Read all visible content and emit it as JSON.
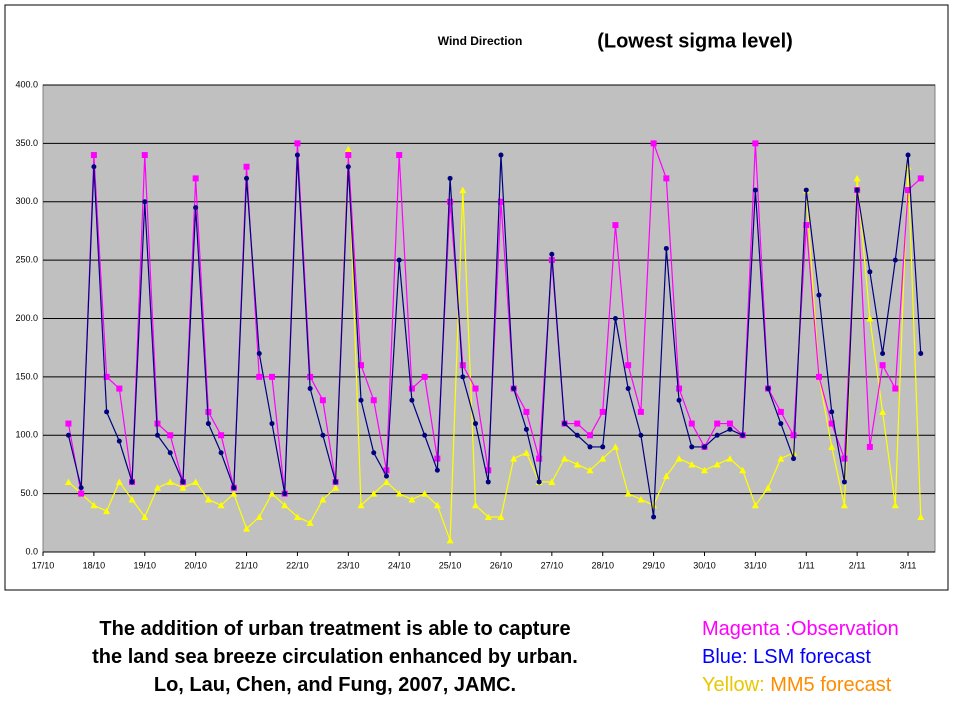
{
  "chart_data": {
    "type": "line",
    "title": "Wind Direction",
    "subtitle": "(Lowest sigma level)",
    "xlim": [
      0,
      17.53
    ],
    "xticks": [
      {
        "value": 0,
        "label": "17/10"
      },
      {
        "value": 1,
        "label": "18/10"
      },
      {
        "value": 2,
        "label": "19/10"
      },
      {
        "value": 3,
        "label": "20/10"
      },
      {
        "value": 4,
        "label": "21/10"
      },
      {
        "value": 5,
        "label": "22/10"
      },
      {
        "value": 6,
        "label": "23/10"
      },
      {
        "value": 7,
        "label": "24/10"
      },
      {
        "value": 8,
        "label": "25/10"
      },
      {
        "value": 9,
        "label": "26/10"
      },
      {
        "value": 10,
        "label": "27/10"
      },
      {
        "value": 11,
        "label": "28/10"
      },
      {
        "value": 12,
        "label": "29/10"
      },
      {
        "value": 13,
        "label": "30/10"
      },
      {
        "value": 14,
        "label": "31/10"
      },
      {
        "value": 15,
        "label": "1/11"
      },
      {
        "value": 16,
        "label": "2/11"
      },
      {
        "value": 17,
        "label": "3/11"
      }
    ],
    "ylim": [
      0,
      400
    ],
    "yticks": [
      {
        "value": 0,
        "label": "0.0"
      },
      {
        "value": 50,
        "label": "50.0"
      },
      {
        "value": 100,
        "label": "100.0"
      },
      {
        "value": 150,
        "label": "150.0"
      },
      {
        "value": 200,
        "label": "200.0"
      },
      {
        "value": 250,
        "label": "250.0"
      },
      {
        "value": 300,
        "label": "300.0"
      },
      {
        "value": 350,
        "label": "350.0"
      },
      {
        "value": 400,
        "label": "400.0"
      }
    ],
    "grid": true,
    "plot_background": "#c0c0c0",
    "x": [
      0.5,
      0.75,
      1,
      1.25,
      1.5,
      1.75,
      2,
      2.25,
      2.5,
      2.75,
      3,
      3.25,
      3.5,
      3.75,
      4,
      4.25,
      4.5,
      4.75,
      5,
      5.25,
      5.5,
      5.75,
      6,
      6.25,
      6.5,
      6.75,
      7,
      7.25,
      7.5,
      7.75,
      8,
      8.25,
      8.5,
      8.75,
      9,
      9.25,
      9.5,
      9.75,
      10,
      10.25,
      10.5,
      10.75,
      11,
      11.25,
      11.5,
      11.75,
      12,
      12.25,
      12.5,
      12.75,
      13,
      13.25,
      13.5,
      13.75,
      14,
      14.25,
      14.5,
      14.75,
      15,
      15.25,
      15.5,
      15.75,
      16,
      16.25,
      16.5,
      16.75,
      17,
      17.25
    ],
    "series": [
      {
        "name": "Observation",
        "prefix": "Magenta :",
        "color": "#ff00ff",
        "marker": "square",
        "values": [
          110,
          50,
          340,
          150,
          140,
          60,
          340,
          110,
          100,
          60,
          320,
          120,
          100,
          55,
          330,
          150,
          150,
          50,
          350,
          150,
          130,
          60,
          340,
          160,
          130,
          70,
          340,
          140,
          150,
          80,
          300,
          160,
          140,
          70,
          300,
          140,
          120,
          80,
          250,
          110,
          110,
          100,
          120,
          280,
          160,
          120,
          350,
          320,
          140,
          110,
          90,
          110,
          110,
          100,
          350,
          140,
          120,
          100,
          280,
          150,
          110,
          80,
          310,
          90,
          160,
          140,
          310,
          320
        ]
      },
      {
        "name": "LSM forecast",
        "prefix": "Blue: ",
        "color": "#000080",
        "marker": "circle",
        "values": [
          100,
          55,
          330,
          120,
          95,
          60,
          300,
          100,
          85,
          60,
          295,
          110,
          85,
          55,
          320,
          170,
          110,
          50,
          340,
          140,
          100,
          60,
          330,
          130,
          85,
          65,
          250,
          130,
          100,
          70,
          320,
          150,
          110,
          60,
          340,
          140,
          105,
          60,
          255,
          110,
          100,
          90,
          90,
          200,
          140,
          100,
          30,
          260,
          130,
          90,
          90,
          100,
          105,
          100,
          310,
          140,
          110,
          80,
          310,
          220,
          120,
          60,
          310,
          240,
          170,
          250,
          340,
          170
        ]
      },
      {
        "name": "MM5 forecast",
        "prefix": "Yellow: ",
        "color": "#ffff00",
        "marker": "triangle",
        "values": [
          60,
          50,
          40,
          35,
          60,
          45,
          30,
          55,
          60,
          55,
          60,
          45,
          40,
          50,
          20,
          30,
          50,
          40,
          30,
          25,
          45,
          55,
          345,
          40,
          50,
          60,
          50,
          45,
          50,
          40,
          10,
          310,
          40,
          30,
          30,
          80,
          85,
          60,
          60,
          80,
          75,
          70,
          80,
          90,
          50,
          45,
          40,
          65,
          80,
          75,
          70,
          75,
          80,
          70,
          40,
          55,
          80,
          85,
          310,
          150,
          90,
          40,
          320,
          200,
          120,
          40,
          330,
          30
        ]
      }
    ],
    "caption": [
      "The addition of urban treatment is able to capture",
      "the land sea breeze circulation enhanced by urban.",
      "Lo, Lau, Chen, and Fung, 2007, JAMC."
    ]
  }
}
